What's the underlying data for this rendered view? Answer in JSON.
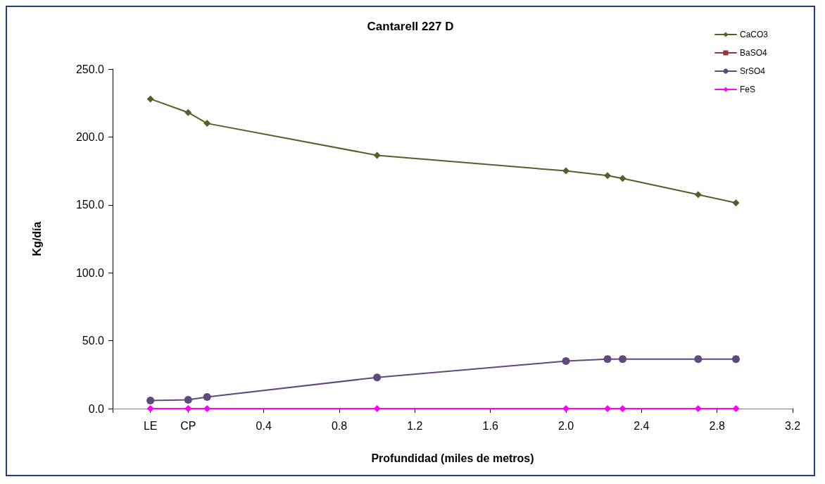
{
  "chart_data": {
    "type": "line",
    "title": "Cantarell 227 D",
    "xlabel": "Profundidad (miles de metros)",
    "ylabel": "Kg/día",
    "x": [
      -0.2,
      0.0,
      0.1,
      1.0,
      2.0,
      2.22,
      2.3,
      2.7,
      2.9
    ],
    "series": [
      {
        "name": "CaCO3",
        "color": "#4f6228",
        "marker": "diamond",
        "values": [
          228.0,
          218.0,
          210.0,
          186.5,
          175.0,
          171.5,
          169.5,
          157.5,
          151.5
        ]
      },
      {
        "name": "BaSO4",
        "color": "#953735",
        "marker": "square",
        "values": [
          null,
          null,
          null,
          null,
          null,
          null,
          null,
          null,
          null
        ]
      },
      {
        "name": "SrSO4",
        "color": "#604a7b",
        "marker": "circle",
        "values": [
          6.0,
          6.5,
          8.5,
          23.0,
          35.0,
          36.5,
          36.5,
          36.5,
          36.5
        ]
      },
      {
        "name": "FeS",
        "color": "#ff00ff",
        "marker": "diamond",
        "values": [
          0,
          0,
          0,
          0,
          0,
          0,
          0,
          0,
          0
        ]
      }
    ],
    "xlim": [
      -0.4,
      3.2
    ],
    "xticks": [
      {
        "value": -0.4,
        "label": null
      },
      {
        "value": -0.2,
        "label": "LE"
      },
      {
        "value": 0.0,
        "label": "CP"
      },
      0.4,
      0.8,
      1.2,
      1.6,
      {
        "value": 2.0,
        "label": "2.0"
      },
      2.4,
      2.8,
      3.2
    ],
    "ylim": [
      0,
      250
    ],
    "yticks": [
      {
        "value": 0,
        "label": "0.0"
      },
      {
        "value": 50,
        "label": "50.0"
      },
      {
        "value": 100,
        "label": "100.0"
      },
      {
        "value": 150,
        "label": "150.0"
      },
      {
        "value": 200,
        "label": "200.0"
      },
      {
        "value": 250,
        "label": "250.0"
      }
    ],
    "grid": false,
    "legend": "top right",
    "line_style": "solid"
  }
}
